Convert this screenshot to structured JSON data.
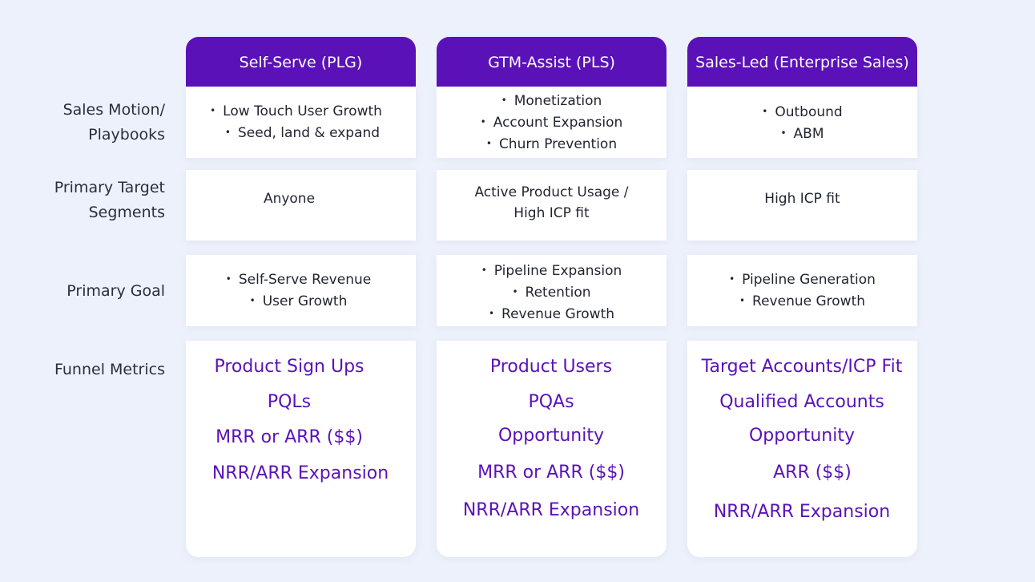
{
  "rows": {
    "sales_motion": "Sales Motion/ Playbooks",
    "primary_target": "Primary Target Segments",
    "primary_goal": "Primary Goal",
    "funnel_metrics": "Funnel Metrics"
  },
  "columns": [
    {
      "header": "Self-Serve (PLG)",
      "sales_motion": [
        "Low Touch User Growth",
        "Seed, land & expand"
      ],
      "target_line1": "Anyone",
      "target_line2": "",
      "goal": [
        "Self-Serve Revenue",
        "User Growth"
      ],
      "metrics": [
        "Product Sign Ups",
        "PQLs",
        "MRR or ARR ($$)",
        "NRR/ARR Expansion"
      ]
    },
    {
      "header": "GTM-Assist (PLS)",
      "sales_motion": [
        "Monetization",
        "Account Expansion",
        "Churn Prevention"
      ],
      "target_line1": "Active Product Usage /",
      "target_line2": "High ICP fit",
      "goal": [
        "Pipeline Expansion",
        "Retention",
        "Revenue Growth"
      ],
      "metrics": [
        "Product Users",
        "PQAs",
        "Opportunity",
        "MRR or ARR ($$)",
        "NRR/ARR Expansion"
      ]
    },
    {
      "header": "Sales-Led (Enterprise Sales)",
      "sales_motion": [
        "Outbound",
        "ABM"
      ],
      "target_line1": "High ICP fit",
      "target_line2": "",
      "goal": [
        "Pipeline Generation",
        "Revenue Growth"
      ],
      "metrics": [
        "Target Accounts/ICP Fit",
        "Qualified Accounts",
        "Opportunity",
        "ARR ($$)",
        "NRR/ARR Expansion"
      ]
    }
  ],
  "colors": {
    "accent": "#5a12b8",
    "background": "#edf1fb"
  }
}
